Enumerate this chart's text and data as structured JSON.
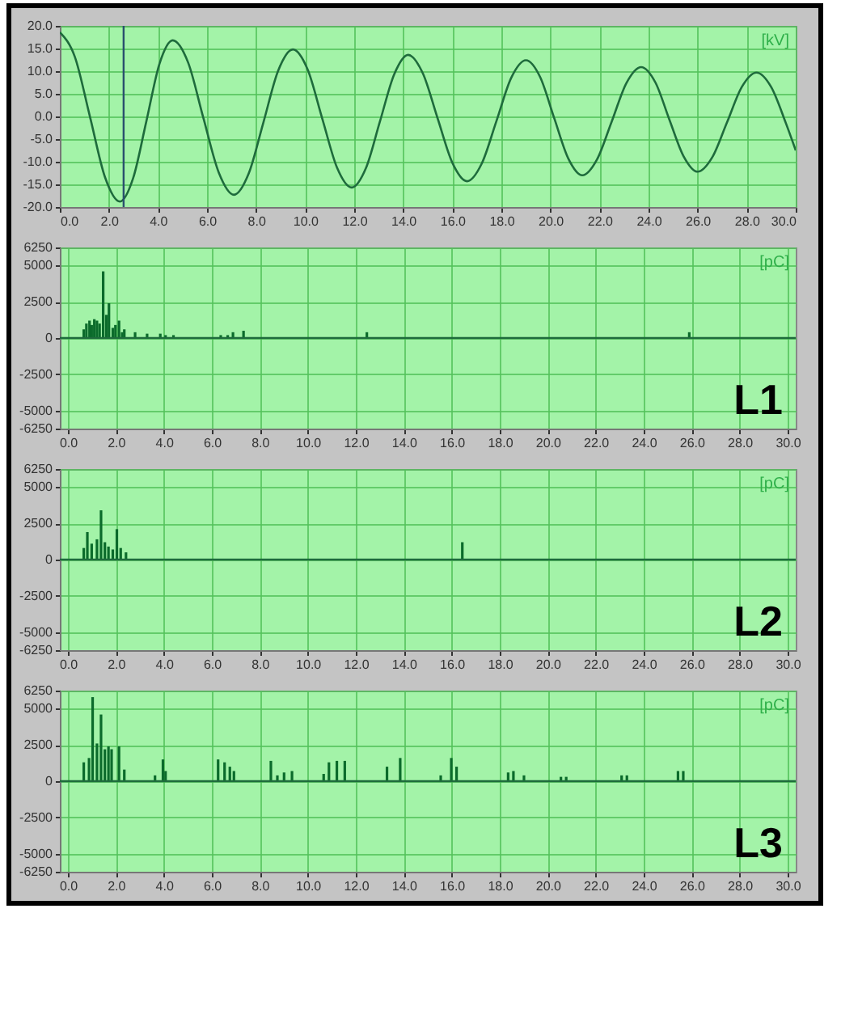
{
  "chart_data": [
    {
      "type": "line",
      "color": "#1e6b3c",
      "annotations": [
        "[kV]"
      ],
      "grid": true,
      "x": [
        0,
        0.61,
        1.23,
        1.84,
        2.45,
        2.99,
        3.53,
        4.06,
        4.6,
        5.23,
        5.85,
        6.48,
        7.1,
        7.7,
        8.3,
        8.9,
        9.5,
        10.1,
        10.7,
        11.3,
        11.9,
        12.48,
        13.05,
        13.63,
        14.2,
        14.8,
        15.4,
        16.0,
        16.6,
        17.2,
        17.8,
        18.4,
        19.0,
        19.58,
        20.15,
        20.73,
        21.3,
        21.9,
        22.5,
        23.1,
        23.7,
        24.28,
        24.85,
        25.43,
        26.0,
        26.6,
        27.2,
        27.8,
        28.4,
        29.0,
        29.6,
        30.0
      ],
      "values": [
        18.6,
        13.2,
        -0.1,
        -13.4,
        -18.8,
        -13.6,
        -1.0,
        11.6,
        16.8,
        11.9,
        -0.3,
        -12.4,
        -17.3,
        -12.6,
        -1.3,
        10.1,
        14.8,
        10.4,
        -0.5,
        -11.3,
        -15.7,
        -11.4,
        -1.1,
        9.3,
        13.6,
        9.5,
        -0.4,
        -10.2,
        -14.3,
        -10.4,
        -1.0,
        8.5,
        12.4,
        8.7,
        -0.3,
        -9.3,
        -13.0,
        -9.5,
        -1.1,
        7.4,
        10.9,
        7.5,
        -0.7,
        -8.8,
        -12.2,
        -9.0,
        -1.3,
        6.5,
        9.7,
        6.5,
        -1.5,
        -7.5
      ],
      "xlim": [
        0,
        30
      ],
      "xticks": [
        {
          "value": 0,
          "label": "0.0"
        },
        {
          "value": 2,
          "label": "2.0"
        },
        {
          "value": 4,
          "label": "4.0"
        },
        {
          "value": 6,
          "label": "6.0"
        },
        {
          "value": 8,
          "label": "8.0"
        },
        {
          "value": 10,
          "label": "10.0"
        },
        {
          "value": 12,
          "label": "12.0"
        },
        {
          "value": 14,
          "label": "14.0"
        },
        {
          "value": 16,
          "label": "16.0"
        },
        {
          "value": 18,
          "label": "18.0"
        },
        {
          "value": 20,
          "label": "20.0"
        },
        {
          "value": 22,
          "label": "22.0"
        },
        {
          "value": 24,
          "label": "24.0"
        },
        {
          "value": 26,
          "label": "26.0"
        },
        {
          "value": 28,
          "label": "28.0"
        },
        {
          "value": 30,
          "label": "30.0"
        }
      ],
      "ylim": [
        -20,
        20
      ],
      "yticks": [
        {
          "value": 20,
          "label": "20.0"
        },
        {
          "value": 15,
          "label": "15.0"
        },
        {
          "value": 10,
          "label": "10.0"
        },
        {
          "value": 5,
          "label": "5.0"
        },
        {
          "value": 0,
          "label": "0.0"
        },
        {
          "value": -5,
          "label": "-5.0"
        },
        {
          "value": -10,
          "label": "-10.0"
        },
        {
          "value": -15,
          "label": "-15.0"
        },
        {
          "value": -20,
          "label": "-20.0"
        }
      ],
      "ref_lines": [
        {
          "axis": "x",
          "value": 2.6,
          "color": "#2a4f6e"
        }
      ]
    },
    {
      "type": "bar",
      "color": "#0b6b2b",
      "annotations": [
        "[pC]",
        "L1"
      ],
      "grid": true,
      "x": [
        0.66,
        0.77,
        0.9,
        0.99,
        1.1,
        1.21,
        1.32,
        1.47,
        1.6,
        1.71,
        1.87,
        1.98,
        2.13,
        2.26,
        2.35,
        2.8,
        3.3,
        3.85,
        4.07,
        4.4,
        6.37,
        6.66,
        6.88,
        7.32,
        12.46,
        25.9
      ],
      "values": [
        600,
        1000,
        1200,
        900,
        1300,
        1200,
        1000,
        4600,
        1600,
        2400,
        700,
        900,
        1200,
        400,
        600,
        400,
        300,
        300,
        200,
        200,
        200,
        200,
        400,
        500,
        400,
        400
      ],
      "xlim": [
        0,
        30
      ],
      "xticks": [
        {
          "value": 0,
          "label": "0.0"
        },
        {
          "value": 2,
          "label": "2.0"
        },
        {
          "value": 4,
          "label": "4.0"
        },
        {
          "value": 6,
          "label": "6.0"
        },
        {
          "value": 8,
          "label": "8.0"
        },
        {
          "value": 10,
          "label": "10.0"
        },
        {
          "value": 12,
          "label": "12.0"
        },
        {
          "value": 14,
          "label": "14.0"
        },
        {
          "value": 16,
          "label": "16.0"
        },
        {
          "value": 18,
          "label": "18.0"
        },
        {
          "value": 20,
          "label": "20.0"
        },
        {
          "value": 22,
          "label": "22.0"
        },
        {
          "value": 24,
          "label": "24.0"
        },
        {
          "value": 26,
          "label": "26.0"
        },
        {
          "value": 28,
          "label": "28.0"
        },
        {
          "value": 30,
          "label": "30.0"
        }
      ],
      "ylim": [
        -6250,
        6250
      ],
      "yticks": [
        6250,
        5000,
        2500,
        0,
        -2500,
        -5000,
        -6250
      ],
      "ref_lines": [
        {
          "axis": "y",
          "value": 0,
          "color": "#1e6b3c"
        }
      ]
    },
    {
      "type": "bar",
      "color": "#0b6b2b",
      "annotations": [
        "[pC]",
        "L2"
      ],
      "grid": true,
      "x": [
        0.66,
        0.81,
        0.99,
        1.21,
        1.38,
        1.54,
        1.69,
        1.87,
        2.04,
        2.2,
        2.42,
        16.44
      ],
      "values": [
        800,
        1900,
        1100,
        1400,
        3400,
        1200,
        900,
        700,
        2100,
        800,
        500,
        1200
      ],
      "xlim": [
        0,
        30
      ],
      "xticks": [
        {
          "value": 0,
          "label": "0.0"
        },
        {
          "value": 2,
          "label": "2.0"
        },
        {
          "value": 4,
          "label": "4.0"
        },
        {
          "value": 6,
          "label": "6.0"
        },
        {
          "value": 8,
          "label": "8.0"
        },
        {
          "value": 10,
          "label": "10.0"
        },
        {
          "value": 12,
          "label": "12.0"
        },
        {
          "value": 14,
          "label": "14.0"
        },
        {
          "value": 16,
          "label": "16.0"
        },
        {
          "value": 18,
          "label": "18.0"
        },
        {
          "value": 20,
          "label": "20.0"
        },
        {
          "value": 22,
          "label": "22.0"
        },
        {
          "value": 24,
          "label": "24.0"
        },
        {
          "value": 26,
          "label": "26.0"
        },
        {
          "value": 28,
          "label": "28.0"
        },
        {
          "value": 30,
          "label": "30.0"
        }
      ],
      "ylim": [
        -6250,
        6250
      ],
      "yticks": [
        6250,
        5000,
        2500,
        0,
        -2500,
        -5000,
        -6250
      ],
      "ref_lines": [
        {
          "axis": "y",
          "value": 0,
          "color": "#1e6b3c"
        }
      ]
    },
    {
      "type": "bar",
      "color": "#0b6b2b",
      "annotations": [
        "[pC]",
        "L3"
      ],
      "grid": true,
      "x": [
        0.66,
        0.88,
        1.03,
        1.21,
        1.38,
        1.54,
        1.69,
        1.82,
        2.13,
        2.35,
        3.63,
        3.96,
        4.07,
        6.26,
        6.53,
        6.75,
        6.92,
        8.46,
        8.73,
        9.01,
        9.34,
        10.66,
        10.88,
        11.21,
        11.54,
        13.3,
        13.85,
        15.54,
        15.98,
        16.2,
        18.35,
        18.57,
        19.01,
        20.55,
        20.77,
        23.08,
        23.3,
        25.43,
        25.65
      ],
      "values": [
        1300,
        1600,
        5800,
        2600,
        4600,
        2200,
        2400,
        2200,
        2400,
        800,
        400,
        1500,
        700,
        1500,
        1300,
        1000,
        700,
        1400,
        400,
        600,
        700,
        500,
        1300,
        1400,
        1400,
        1000,
        1600,
        400,
        1600,
        1000,
        600,
        700,
        400,
        300,
        300,
        400,
        400,
        700,
        700
      ],
      "xlim": [
        0,
        30
      ],
      "xticks": [
        {
          "value": 0,
          "label": "0.0"
        },
        {
          "value": 2,
          "label": "2.0"
        },
        {
          "value": 4,
          "label": "4.0"
        },
        {
          "value": 6,
          "label": "6.0"
        },
        {
          "value": 8,
          "label": "8.0"
        },
        {
          "value": 10,
          "label": "10.0"
        },
        {
          "value": 12,
          "label": "12.0"
        },
        {
          "value": 14,
          "label": "14.0"
        },
        {
          "value": 16,
          "label": "16.0"
        },
        {
          "value": 18,
          "label": "18.0"
        },
        {
          "value": 20,
          "label": "20.0"
        },
        {
          "value": 22,
          "label": "22.0"
        },
        {
          "value": 24,
          "label": "24.0"
        },
        {
          "value": 26,
          "label": "26.0"
        },
        {
          "value": 28,
          "label": "28.0"
        },
        {
          "value": 30,
          "label": "30.0"
        }
      ],
      "ylim": [
        -6250,
        6250
      ],
      "yticks": [
        6250,
        5000,
        2500,
        0,
        -2500,
        -5000,
        -6250
      ],
      "ref_lines": [
        {
          "axis": "y",
          "value": 0,
          "color": "#1e6b3c"
        }
      ]
    }
  ]
}
